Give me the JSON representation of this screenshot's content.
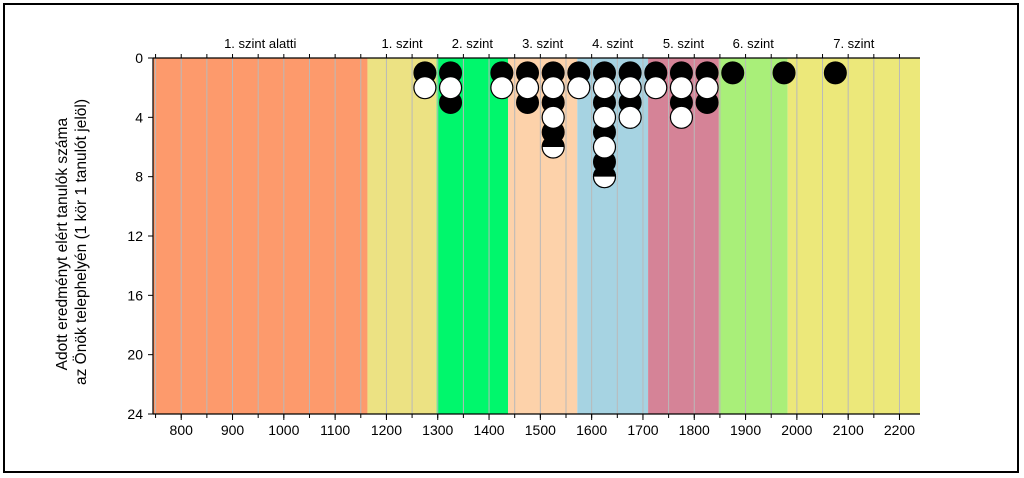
{
  "chart_data": {
    "type": "scatter",
    "title": "",
    "ylabel_lines": [
      "Adott eredményt elért tanulók száma",
      "az Önök telephelyén (1 kör 1 tanulót jelöl)"
    ],
    "xlabel": "",
    "xlim": [
      745,
      2240
    ],
    "ylim": [
      0,
      24
    ],
    "y_inverted": true,
    "x_ticks": [
      800,
      900,
      1000,
      1100,
      1200,
      1300,
      1400,
      1500,
      1600,
      1700,
      1800,
      1900,
      2000,
      2100,
      2200
    ],
    "y_ticks": [
      0,
      4,
      8,
      12,
      16,
      20,
      24
    ],
    "minor_x_step": 50,
    "grid": "vertical",
    "bands": [
      {
        "label": "1. szint alatti",
        "from": 745,
        "to": 1163,
        "color": "#fd9a6c"
      },
      {
        "label": "1. szint",
        "from": 1163,
        "to": 1298,
        "color": "#ece283"
      },
      {
        "label": "2. szint",
        "from": 1298,
        "to": 1437,
        "color": "#00f76c"
      },
      {
        "label": "3. szint",
        "from": 1437,
        "to": 1572,
        "color": "#fdd2aa"
      },
      {
        "label": "4. szint",
        "from": 1572,
        "to": 1710,
        "color": "#a6d3e2"
      },
      {
        "label": "5. szint",
        "from": 1710,
        "to": 1848,
        "color": "#d58397"
      },
      {
        "label": "6. szint",
        "from": 1848,
        "to": 1982,
        "color": "#a9ef79"
      },
      {
        "label": "7. szint",
        "from": 1982,
        "to": 2240,
        "color": "#ece87a"
      }
    ],
    "series": [
      {
        "name": "filled",
        "x": [
          1275,
          1325,
          1325,
          1425,
          1475,
          1475,
          1525,
          1525,
          1525,
          1575,
          1625,
          1625,
          1625,
          1625,
          1625,
          1675,
          1675,
          1725,
          1775,
          1775,
          1825,
          1825,
          1875,
          1975,
          2075
        ],
        "y": [
          1,
          1,
          3,
          1,
          1,
          3,
          1,
          3,
          5,
          1,
          1,
          3,
          5,
          7,
          8,
          1,
          3,
          1,
          1,
          3,
          1,
          3,
          1,
          1,
          1
        ]
      },
      {
        "name": "open",
        "x": [
          1275,
          1325,
          1425,
          1475,
          1525,
          1525,
          1575,
          1625,
          1625,
          1625,
          1675,
          1675,
          1725,
          1775,
          1775,
          1825
        ],
        "y": [
          2,
          2,
          2,
          2,
          2,
          4,
          2,
          2,
          4,
          6,
          2,
          4,
          2,
          2,
          4,
          2
        ]
      },
      {
        "name": "split",
        "x": [
          1525,
          1625
        ],
        "y": [
          6,
          8
        ]
      }
    ]
  }
}
